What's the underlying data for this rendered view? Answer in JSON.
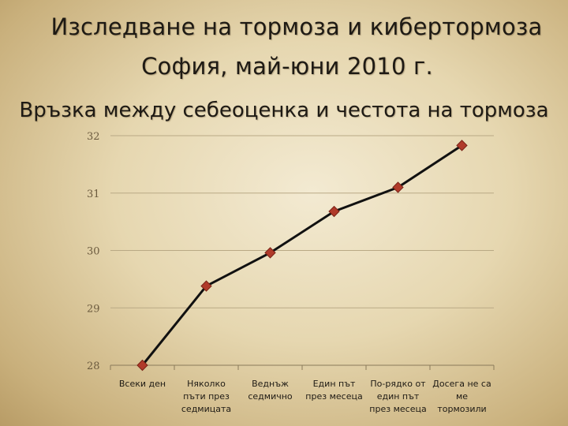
{
  "header": {
    "title_line1": "Изследване на тормоза и кибертормоза",
    "title_line2": "София, май-юни 2010 г.",
    "subtitle": "Връзка между себеоценка и честота на тормоза"
  },
  "colors": {
    "line": "#111111",
    "marker": "#b03a2a",
    "marker_stroke": "#7a2418",
    "grid": "#b9a985",
    "axis": "#8a7a5a"
  },
  "chart_data": {
    "type": "line",
    "title": "Връзка между себеоценка и честота на тормоза",
    "xlabel": "",
    "ylabel": "",
    "categories": [
      [
        "Всеки ден"
      ],
      [
        "Няколко",
        "пъти през",
        "седмицата"
      ],
      [
        "Веднъж",
        "седмично"
      ],
      [
        "Един път",
        "през месеца"
      ],
      [
        "По-рядко от",
        "един път",
        "през месеца"
      ],
      [
        "Досега не са",
        "ме",
        "тормозили"
      ]
    ],
    "values": [
      28.0,
      29.38,
      29.96,
      30.68,
      31.1,
      31.83
    ],
    "ylim": [
      28,
      32
    ],
    "yticks": [
      28,
      29,
      30,
      31,
      32
    ],
    "grid": true,
    "marker": "diamond"
  }
}
